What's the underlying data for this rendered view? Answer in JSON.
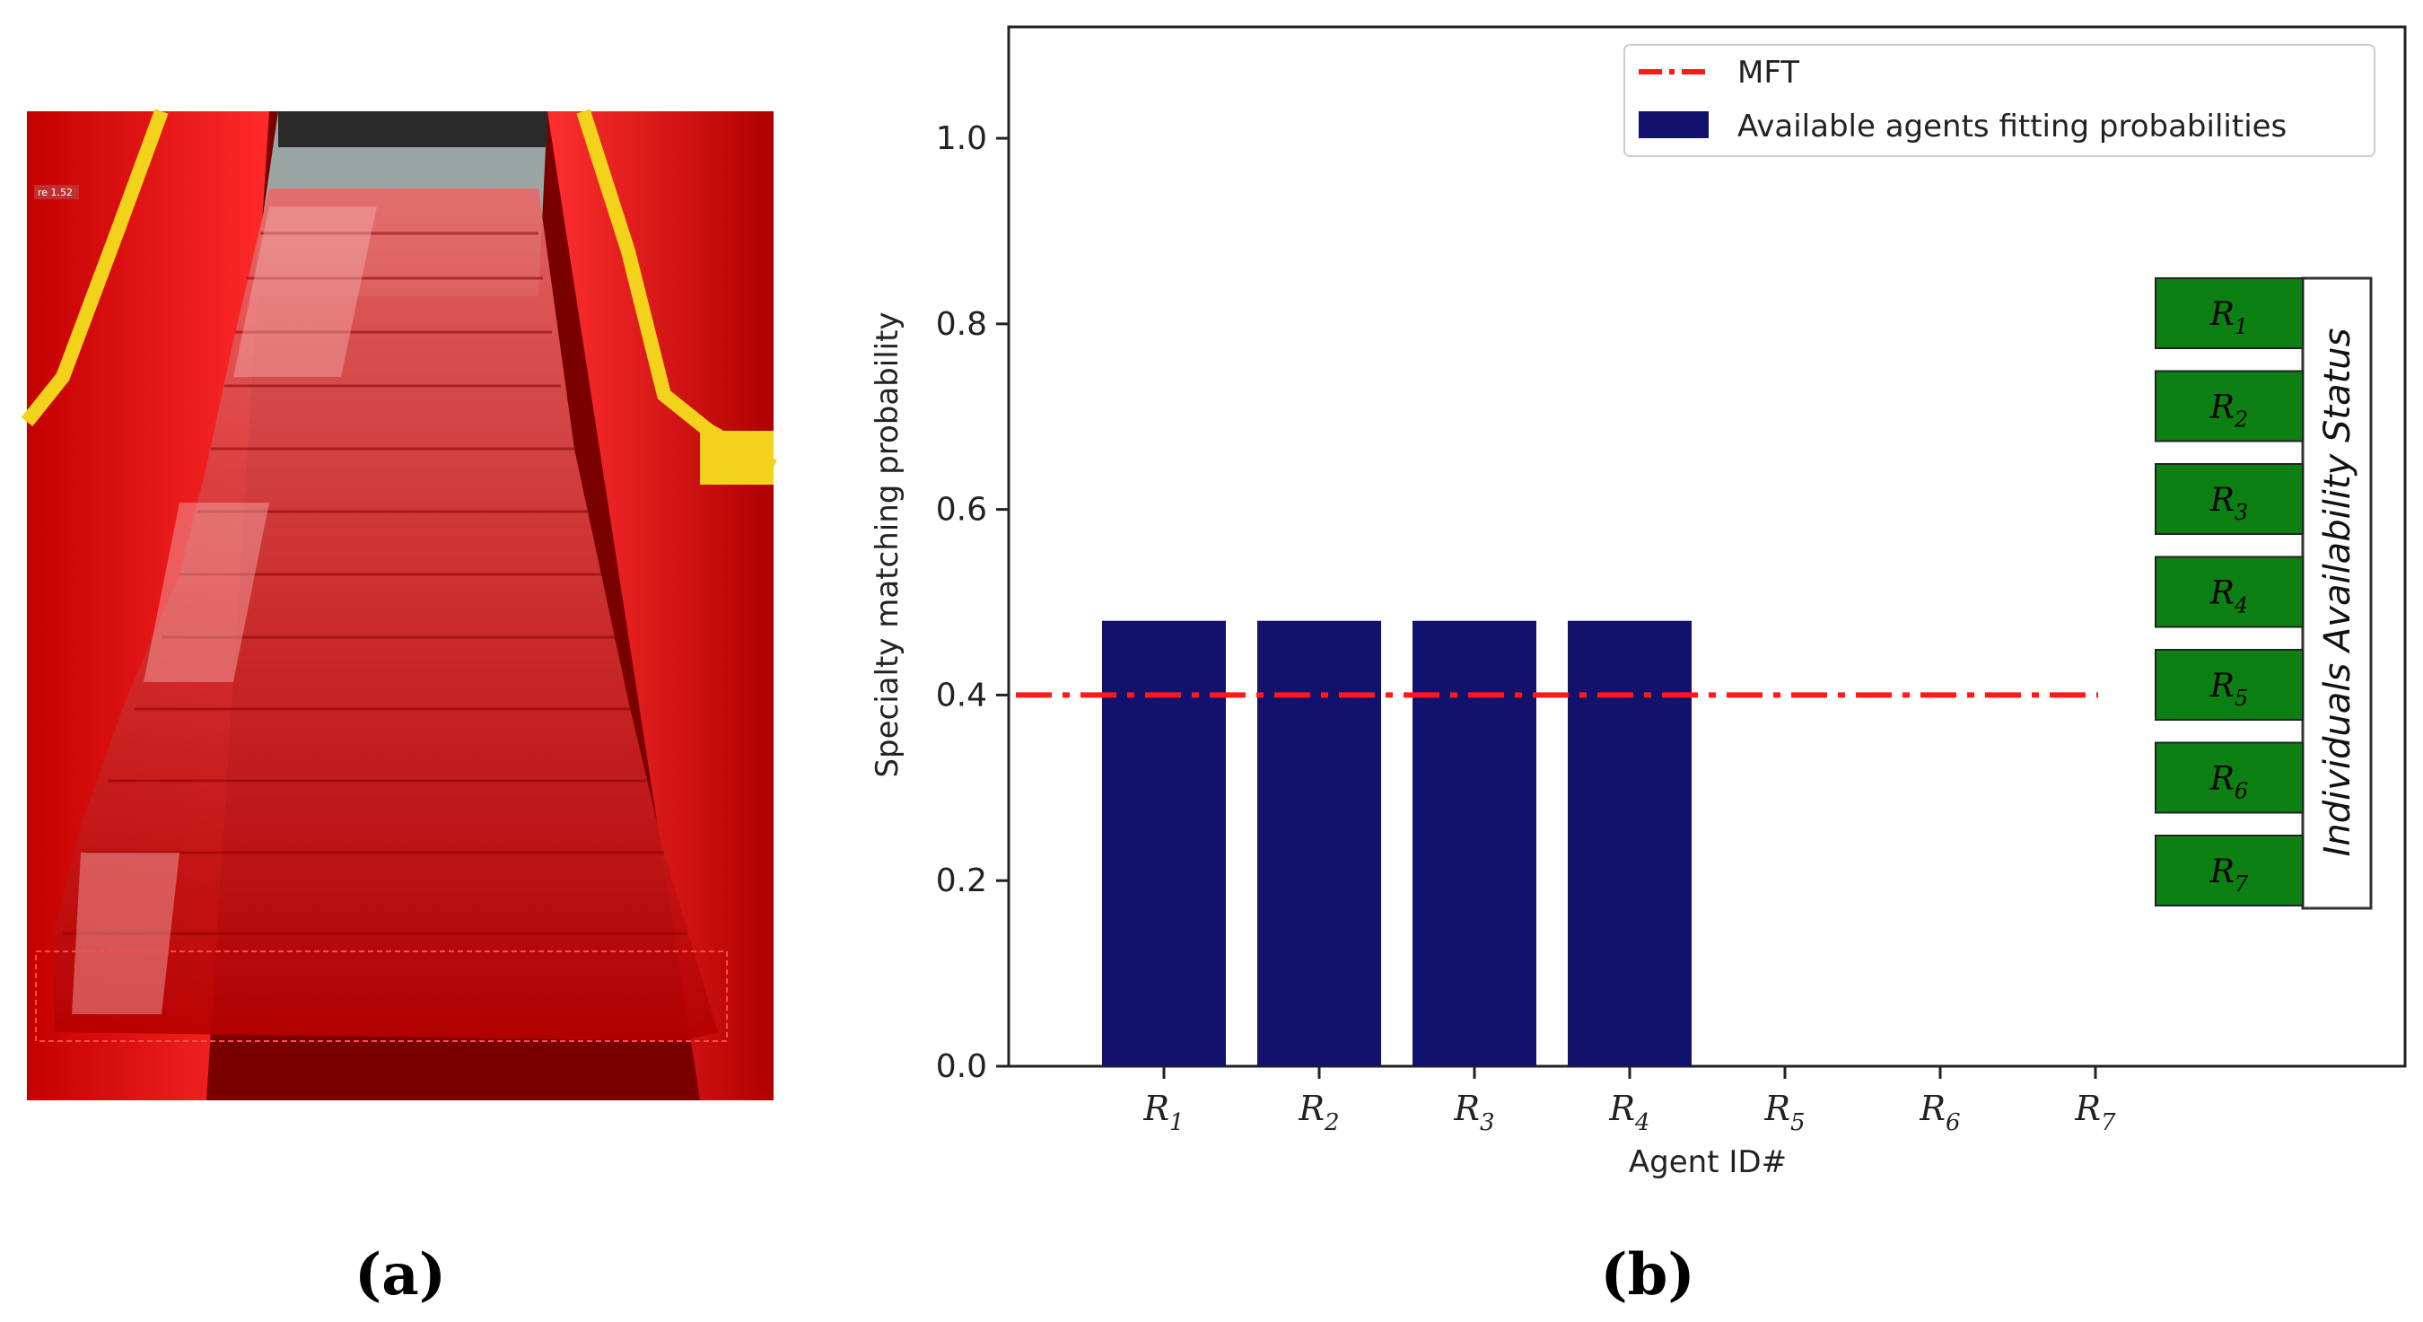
{
  "panels": {
    "a_label": "(a)",
    "b_label": "(b)"
  },
  "photo": {
    "tag": "re 1.52"
  },
  "chart_data": {
    "type": "bar",
    "title": "",
    "xlabel": "Agent ID#",
    "ylabel": "Specialty matching probability",
    "categories": [
      {
        "base": "R",
        "sub": "1"
      },
      {
        "base": "R",
        "sub": "2"
      },
      {
        "base": "R",
        "sub": "3"
      },
      {
        "base": "R",
        "sub": "4"
      },
      {
        "base": "R",
        "sub": "5"
      },
      {
        "base": "R",
        "sub": "6"
      },
      {
        "base": "R",
        "sub": "7"
      }
    ],
    "values": [
      0.48,
      0.48,
      0.48,
      0.48,
      0,
      0,
      0
    ],
    "ylim": [
      0,
      1.12
    ],
    "yticks": [
      "0.0",
      "0.2",
      "0.4",
      "0.6",
      "0.8",
      "1.0"
    ],
    "ytick_values": [
      0.0,
      0.2,
      0.4,
      0.6,
      0.8,
      1.0
    ],
    "threshold": {
      "name": "MFT",
      "value": 0.4,
      "color": "#ff1a1a"
    },
    "bar_color": "#12126e",
    "legend": {
      "placement": "top-right",
      "entries": [
        "MFT",
        "Available agents fitting probabilities"
      ]
    },
    "status": {
      "title": "Individuals Availability Status",
      "color": "#0d8013",
      "items": [
        {
          "base": "R",
          "sub": "1"
        },
        {
          "base": "R",
          "sub": "2"
        },
        {
          "base": "R",
          "sub": "3"
        },
        {
          "base": "R",
          "sub": "4"
        },
        {
          "base": "R",
          "sub": "5"
        },
        {
          "base": "R",
          "sub": "6"
        },
        {
          "base": "R",
          "sub": "7"
        }
      ]
    }
  }
}
